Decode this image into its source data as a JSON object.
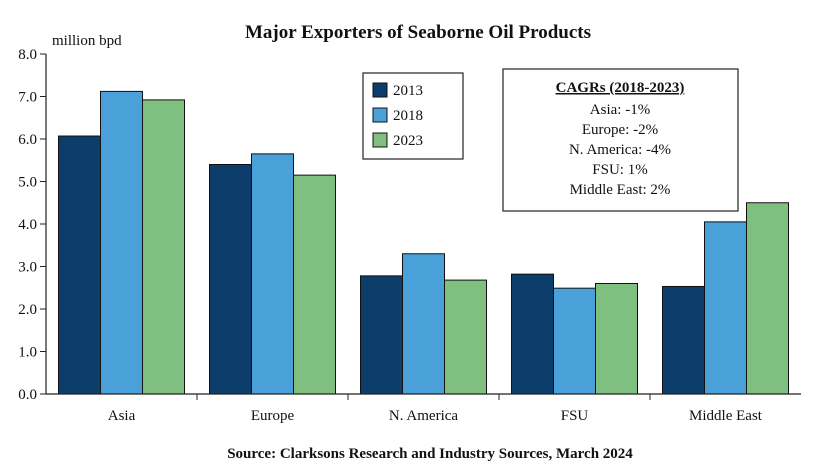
{
  "chart_data": {
    "type": "bar",
    "title": "Major Exporters of Seaborne Oil Products",
    "ylabel": "million bpd",
    "xlabel": "",
    "ylim": [
      0,
      8
    ],
    "ytick_labels": [
      "0.0",
      "1.0",
      "2.0",
      "3.0",
      "4.0",
      "5.0",
      "6.0",
      "7.0",
      "8.0"
    ],
    "categories": [
      "Asia",
      "Europe",
      "N. America",
      "FSU",
      "Middle East"
    ],
    "series": [
      {
        "name": "2013",
        "color": "#0d3d6b",
        "values": [
          6.07,
          5.4,
          2.78,
          2.82,
          2.53
        ]
      },
      {
        "name": "2018",
        "color": "#4aa0d8",
        "values": [
          7.12,
          5.65,
          3.3,
          2.49,
          4.05
        ]
      },
      {
        "name": "2023",
        "color": "#7fbf7f",
        "values": [
          6.92,
          5.15,
          2.68,
          2.6,
          4.5
        ]
      }
    ],
    "legend_position": "top-center",
    "grid": false,
    "annotation": {
      "title": "CAGRs (2018-2023)",
      "lines": [
        "Asia: -1%",
        "Europe: -2%",
        "N. America: -4%",
        "FSU: 1%",
        "Middle East: 2%"
      ]
    },
    "source": "Source: Clarksons Research and Industry Sources, March 2024"
  }
}
